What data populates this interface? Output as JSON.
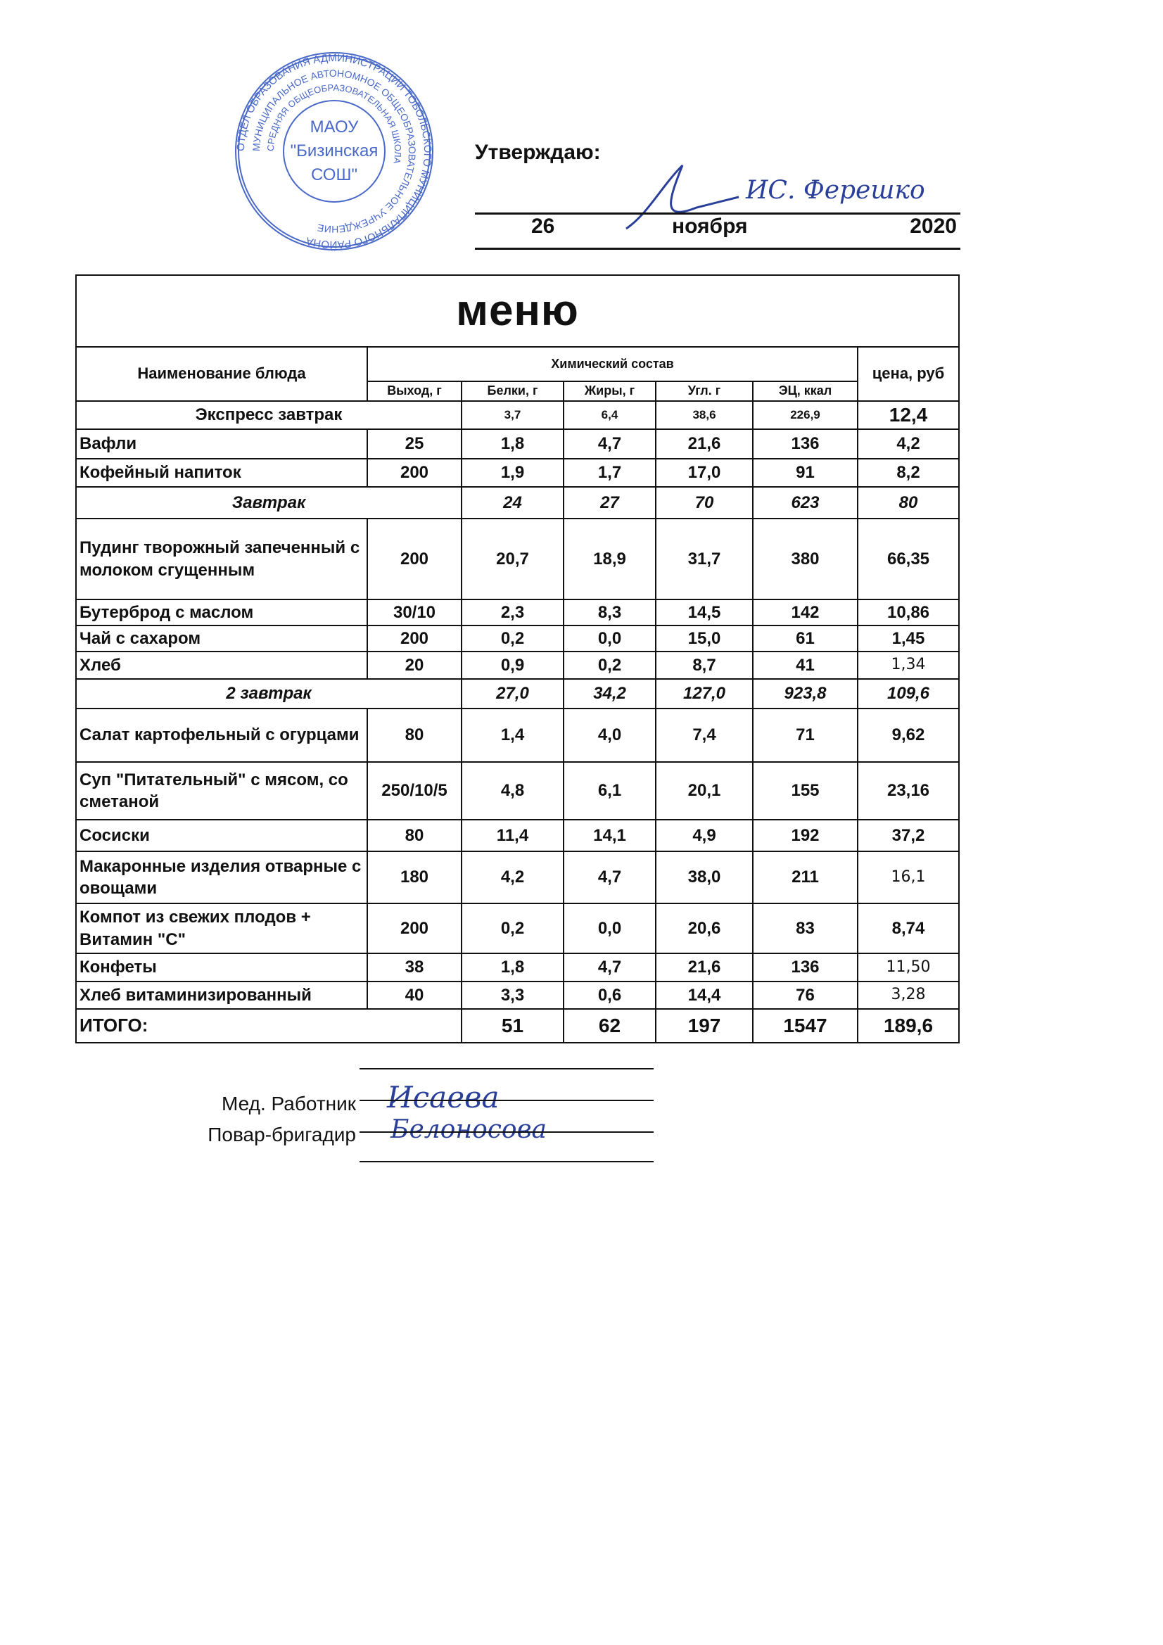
{
  "approval": {
    "label": "Утверждаю:",
    "signature": "ИС. Ферешко",
    "day": "26",
    "month": "ноября",
    "year": "2020",
    "stamp": {
      "outer_text": "ОТДЕЛ ОБРАЗОВАНИЯ АДМИНИСТРАЦИИ ТОБОЛЬСКОГО МУНИЦИПАЛЬНОГО РАЙОНА",
      "middle_text": "МУНИЦИПАЛЬНОЕ АВТОНОМНОЕ ОБЩЕОБРАЗОВАТЕЛЬНОЕ УЧРЕЖДЕНИЕ",
      "inner_text": "СРЕДНЯЯ ОБЩЕОБРАЗОВАТЕЛЬНАЯ ШКОЛА",
      "center_line1": "МАОУ",
      "center_line2": "\"Бизинская",
      "center_line3": "СОШ\"",
      "color": "#2a4fc0"
    }
  },
  "menu": {
    "title": "меню",
    "headers": {
      "name": "Наименование блюда",
      "chem": "Химический состав",
      "price": "цена, руб",
      "cols": [
        "Выход, г",
        "Белки, г",
        "Жиры, г",
        "Угл. г",
        "ЭЦ, ккал"
      ]
    },
    "rows": [
      {
        "type": "express",
        "name": "Экспресс завтрак",
        "values": [
          "",
          "3,7",
          "6,4",
          "38,6",
          "226,9"
        ],
        "price": "12,4",
        "h": 40
      },
      {
        "type": "item",
        "name": "Вафли",
        "values": [
          "25",
          "1,8",
          "4,7",
          "21,6",
          "136"
        ],
        "price": "4,2",
        "h": 42
      },
      {
        "type": "item",
        "name": "Кофейный напиток",
        "values": [
          "200",
          "1,9",
          "1,7",
          "17,0",
          "91"
        ],
        "price": "8,2",
        "h": 40
      },
      {
        "type": "section",
        "name": "Завтрак",
        "values": [
          "",
          "24",
          "27",
          "70",
          "623"
        ],
        "price": "80",
        "h": 45
      },
      {
        "type": "item",
        "name": "Пудинг творожный запеченный с молоком сгущенным",
        "values": [
          "200",
          "20,7",
          "18,9",
          "31,7",
          "380"
        ],
        "price": "66,35",
        "h": 115
      },
      {
        "type": "item",
        "name": "Бутерброд с маслом",
        "values": [
          "30/10",
          "2,3",
          "8,3",
          "14,5",
          "142"
        ],
        "price": "10,86",
        "h": 37
      },
      {
        "type": "item",
        "name": "Чай с сахаром",
        "values": [
          "200",
          "0,2",
          "0,0",
          "15,0",
          "61"
        ],
        "price": "1,45",
        "h": 37
      },
      {
        "type": "item",
        "name": "Хлеб",
        "values": [
          "20",
          "0,9",
          "0,2",
          "8,7",
          "41"
        ],
        "price": "1,34",
        "priceRegular": true,
        "h": 39
      },
      {
        "type": "section",
        "name": "2 завтрак",
        "values": [
          "",
          "27,0",
          "34,2",
          "127,0",
          "923,8"
        ],
        "price": "109,6",
        "h": 42
      },
      {
        "type": "item",
        "name": "Салат картофельный с огурцами",
        "values": [
          "80",
          "1,4",
          "4,0",
          "7,4",
          "71"
        ],
        "price": "9,62",
        "h": 76
      },
      {
        "type": "item",
        "name": "Суп \"Питательный\"  с мясом, со сметаной",
        "values": [
          "250/10/5",
          "4,8",
          "6,1",
          "20,1",
          "155"
        ],
        "price": "23,16",
        "h": 82
      },
      {
        "type": "item",
        "name": "Сосиски",
        "values": [
          "80",
          "11,4",
          "14,1",
          "4,9",
          "192"
        ],
        "price": "37,2",
        "h": 45
      },
      {
        "type": "item",
        "name": "Макаронные изделия отварные с овощами",
        "values": [
          "180",
          "4,2",
          "4,7",
          "38,0",
          "211"
        ],
        "price": "16,1",
        "priceRegular": true,
        "h": 74
      },
      {
        "type": "item",
        "name": "Компот из свежих плодов + Витамин \"С\"",
        "values": [
          "200",
          "0,2",
          "0,0",
          "20,6",
          "83"
        ],
        "price": "8,74",
        "h": 71
      },
      {
        "type": "item",
        "name": "Конфеты",
        "values": [
          "38",
          "1,8",
          "4,7",
          "21,6",
          "136"
        ],
        "price": "11,50",
        "priceRegular": true,
        "h": 40
      },
      {
        "type": "item",
        "name": "Хлеб витаминизированный",
        "values": [
          "40",
          "3,3",
          "0,6",
          "14,4",
          "76"
        ],
        "price": "3,28",
        "priceRegular": true,
        "h": 39
      },
      {
        "type": "total",
        "name": "ИТОГО:",
        "values": [
          "",
          "51",
          "62",
          "197",
          "1547"
        ],
        "price": "189,6",
        "h": 48
      }
    ]
  },
  "signers": [
    {
      "role": "Мед. Работник",
      "signature": "Исаева"
    },
    {
      "role": "Повар-бригадир",
      "signature": "Белоносова"
    }
  ]
}
